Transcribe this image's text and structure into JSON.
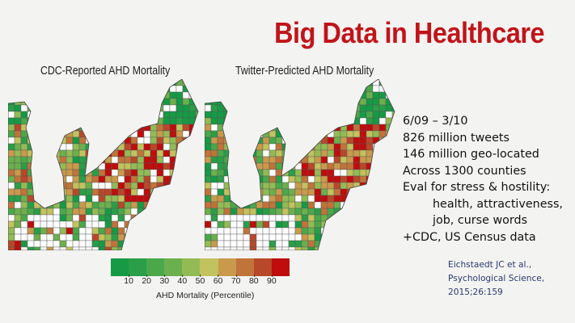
{
  "slide": {
    "title": "Big Data in Healthcare",
    "maps": [
      {
        "title": "CDC-Reported AHD Mortality"
      },
      {
        "title": "Twitter-Predicted AHD Mortality"
      }
    ],
    "bullets": [
      "6/09 – 3/10",
      "826 million tweets",
      "146 million geo-located",
      "Across 1300 counties",
      "Eval for stress & hostility:",
      "health, attractiveness,",
      "job, curse words",
      "+CDC, US Census data"
    ],
    "citation": [
      "Eichstaedt JC et al.,",
      "Psychological Science,",
      "2015;26:159"
    ],
    "legend": {
      "label": "AHD Mortality (Percentile)",
      "ticks": [
        "10",
        "20",
        "30",
        "40",
        "50",
        "60",
        "70",
        "80",
        "90"
      ],
      "colors": [
        "#169a45",
        "#2a9e48",
        "#4aa84a",
        "#6cb04e",
        "#93bb55",
        "#c2c25e",
        "#c99a4c",
        "#c0743a",
        "#b8482a",
        "#bf0d0d"
      ]
    },
    "colors": {
      "title": "#c1141a",
      "citation": "#2a3b6e",
      "background": "#f3f3f1"
    }
  }
}
